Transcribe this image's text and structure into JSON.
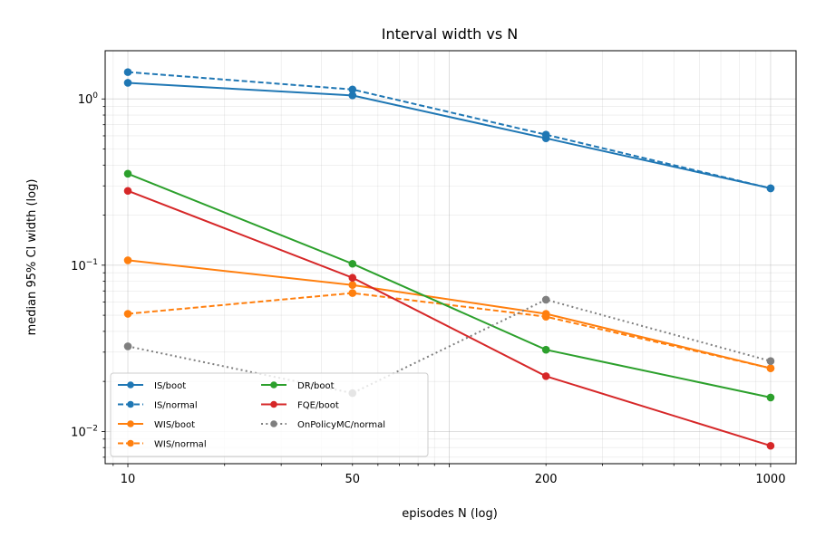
{
  "chart_data": {
    "type": "line",
    "title": "Interval width vs N",
    "xlabel": "episodes N (log)",
    "ylabel": "median 95% CI width (log)",
    "xscale": "log",
    "yscale": "log",
    "x": [
      10,
      50,
      200,
      1000
    ],
    "xlim": [
      8.5,
      1200
    ],
    "ylim": [
      0.0064,
      1.95
    ],
    "xticks": [
      {
        "value": 10,
        "label": "10"
      },
      {
        "value": 50,
        "label": "50"
      },
      {
        "value": 200,
        "label": "200"
      },
      {
        "value": 1000,
        "label": "1000"
      }
    ],
    "yticks": [
      {
        "value": 1.0,
        "base": "10",
        "exp": "0"
      },
      {
        "value": 0.1,
        "base": "10",
        "exp": "−1"
      },
      {
        "value": 0.01,
        "base": "10",
        "exp": "−2"
      }
    ],
    "grid": true,
    "legend": {
      "placement": "lower-left",
      "columns": 2
    },
    "series": [
      {
        "name": "IS/boot",
        "color": "#1f77b4",
        "dash": "solid",
        "values": [
          1.25,
          1.05,
          0.58,
          0.29
        ]
      },
      {
        "name": "IS/normal",
        "color": "#1f77b4",
        "dash": "dashed",
        "values": [
          1.45,
          1.14,
          0.61,
          0.29
        ]
      },
      {
        "name": "WIS/boot",
        "color": "#ff7f0e",
        "dash": "solid",
        "values": [
          0.107,
          0.076,
          0.051,
          0.024
        ]
      },
      {
        "name": "WIS/normal",
        "color": "#ff7f0e",
        "dash": "dashed",
        "values": [
          0.051,
          0.068,
          0.049,
          0.024
        ]
      },
      {
        "name": "DR/boot",
        "color": "#2ca02c",
        "dash": "solid",
        "values": [
          0.355,
          0.102,
          0.031,
          0.016
        ]
      },
      {
        "name": "FQE/boot",
        "color": "#d62728",
        "dash": "solid",
        "values": [
          0.28,
          0.084,
          0.0215,
          0.0082
        ]
      },
      {
        "name": "OnPolicyMC/normal",
        "color": "#7f7f7f",
        "dash": "dotted",
        "values": [
          0.0325,
          0.017,
          0.062,
          0.0265
        ]
      }
    ]
  }
}
